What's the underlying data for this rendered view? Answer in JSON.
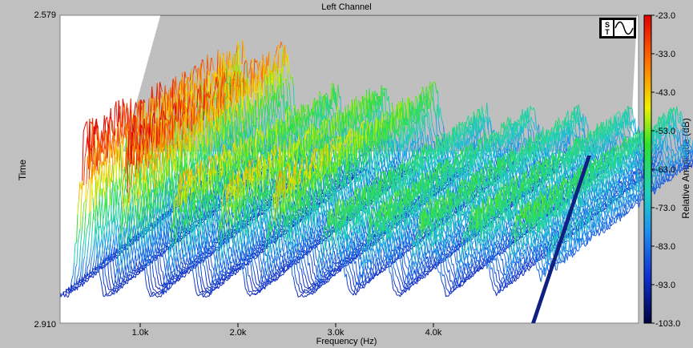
{
  "chart_data": {
    "type": "waterfall",
    "title": "Left Channel",
    "xlabel": "Frequency (Hz)",
    "ylabel": "Time",
    "colorbar_label": "Relative Amplitude (dB)",
    "y_ticks": [
      "2.579",
      "2.910"
    ],
    "x_ticks": [
      "1.0k",
      "2.0k",
      "3.0k",
      "4.0k"
    ],
    "x_tick_values": [
      1000,
      2000,
      3000,
      4000
    ],
    "colorbar_ticks": [
      "-23.0",
      "-33.0",
      "-43.0",
      "-53.0",
      "-63.0",
      "-73.0",
      "-83.0",
      "-93.0",
      "-103.0"
    ],
    "colorbar_range": [
      -103,
      -23
    ],
    "peak_frequencies_hz": [
      450,
      900,
      1400,
      1900,
      2400,
      2950,
      3400,
      3900,
      4400,
      4900,
      5300
    ]
  },
  "logo": {
    "text": "S T",
    "name": "spectraplus-logo"
  }
}
